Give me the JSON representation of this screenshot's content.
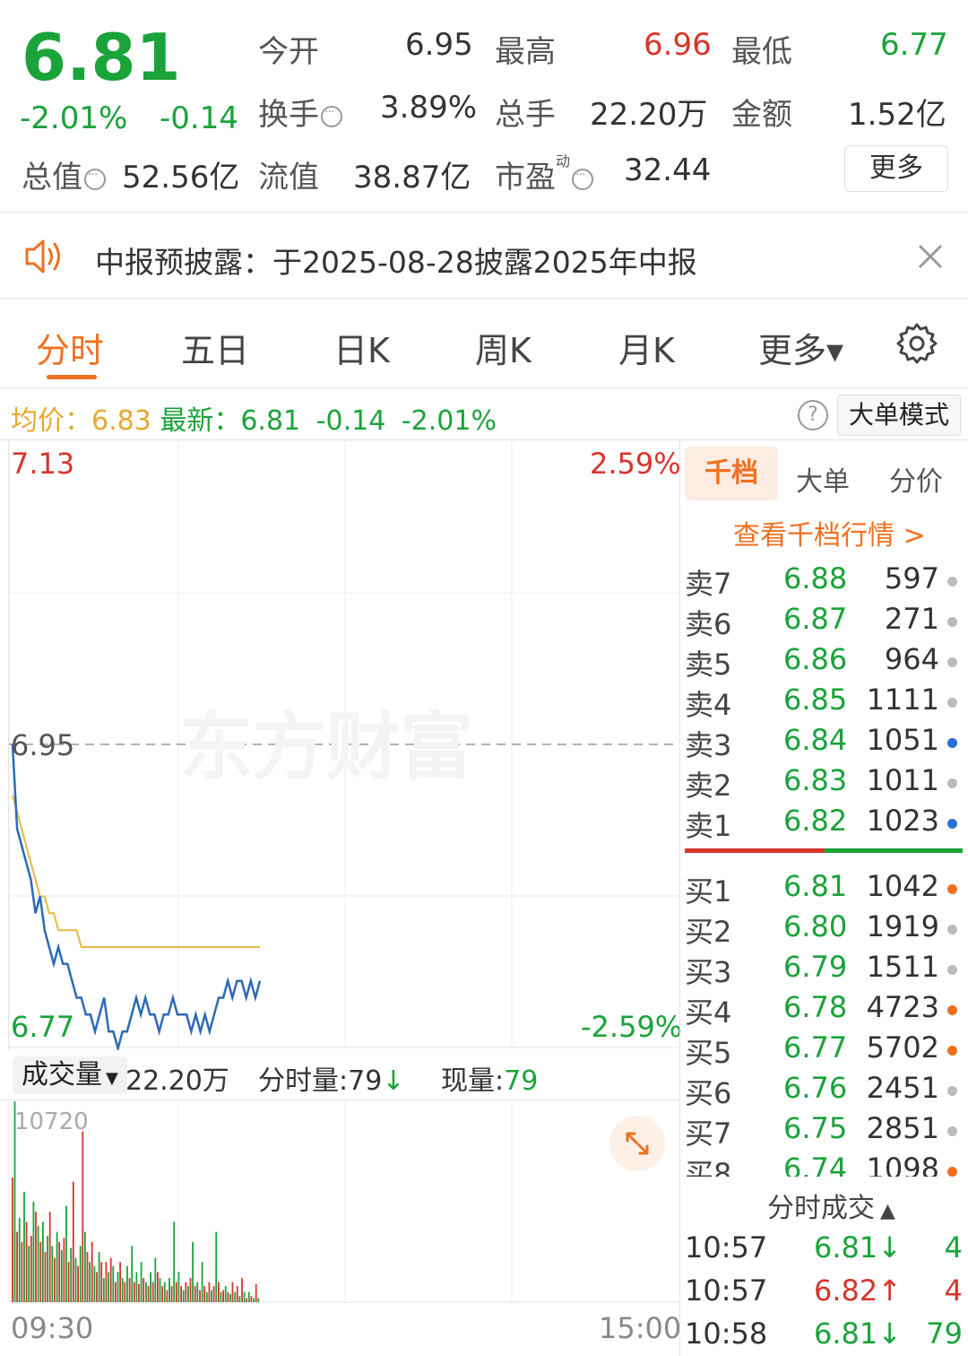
{
  "quote": {
    "price": "6.81",
    "change_pct": "-2.01%",
    "change": "-0.14",
    "open_label": "今开",
    "open": "6.95",
    "high_label": "最高",
    "high": "6.96",
    "low_label": "最低",
    "low": "6.77",
    "turnover_label": "换手",
    "turnover": "3.89%",
    "volume_label": "总手",
    "volume": "22.20万",
    "amount_label": "金额",
    "amount": "1.52亿",
    "mktcap_label": "总值",
    "mktcap": "52.56亿",
    "float_label": "流值",
    "float": "38.87亿",
    "pe_label": "市盈",
    "pe_sup": "动",
    "pe": "32.44",
    "more_button": "更多"
  },
  "notice": {
    "text": "中报预披露：于2025-08-28披露2025年中报"
  },
  "tabs": [
    {
      "label": "分时",
      "active": true
    },
    {
      "label": "五日"
    },
    {
      "label": "日K"
    },
    {
      "label": "周K"
    },
    {
      "label": "月K"
    },
    {
      "label": "更多▾"
    }
  ],
  "info_bar": {
    "avg_label": "均价：",
    "avg": "6.83",
    "latest_label": "最新：",
    "latest": "6.81",
    "change": "-0.14",
    "change_pct": "-2.01%",
    "mode_button": "大单模式"
  },
  "chart": {
    "y_top": "7.13",
    "y_bottom": "6.77",
    "y_mid": "6.95",
    "pct_top": "2.59%",
    "pct_bottom": "-2.59%",
    "x_start": "09:30",
    "x_end": "15:00",
    "watermark": "东方财富",
    "volume_selector": "成交量",
    "volume_total": "22.20万",
    "min_volume": "分时量:79",
    "now_volume_label": "现量:",
    "now_volume": "79",
    "vol_max_label": "10720"
  },
  "chart_data": {
    "type": "line",
    "ylim": [
      6.77,
      7.13
    ],
    "prev_close": 6.95,
    "series": [
      {
        "values": [
          6.95,
          6.9,
          6.89,
          6.88,
          6.87,
          6.85,
          6.86,
          6.84,
          6.83,
          6.82,
          6.83,
          6.82,
          6.82,
          6.81,
          6.8,
          6.8,
          6.79,
          6.79,
          6.78,
          6.79,
          6.8,
          6.78,
          6.78,
          6.77,
          6.78,
          6.78,
          6.79,
          6.8,
          6.79,
          6.8,
          6.79,
          6.79,
          6.78,
          6.79,
          6.79,
          6.8,
          6.79,
          6.79,
          6.79,
          6.78,
          6.79,
          6.78,
          6.79,
          6.78,
          6.79,
          6.8,
          6.8,
          6.81,
          6.8,
          6.81,
          6.81,
          6.8,
          6.81,
          6.8,
          6.81
        ]
      },
      {
        "values": [
          6.92,
          6.91,
          6.9,
          6.89,
          6.88,
          6.87,
          6.86,
          6.86,
          6.85,
          6.85,
          6.84,
          6.84,
          6.84,
          6.84,
          6.84,
          6.83,
          6.83,
          6.83,
          6.83,
          6.83,
          6.83,
          6.83,
          6.83,
          6.83,
          6.83,
          6.83,
          6.83,
          6.83,
          6.83,
          6.83,
          6.83,
          6.83,
          6.83,
          6.83,
          6.83,
          6.83,
          6.83,
          6.83,
          6.83,
          6.83,
          6.83,
          6.83,
          6.83,
          6.83,
          6.83,
          6.83,
          6.83,
          6.83,
          6.83,
          6.83,
          6.83,
          6.83,
          6.83,
          6.83,
          6.83
        ]
      }
    ],
    "volume": [
      0.62,
      1.0,
      0.35,
      0.42,
      0.3,
      0.55,
      0.4,
      0.28,
      0.33,
      0.5,
      0.45,
      0.38,
      0.3,
      0.4,
      0.25,
      0.33,
      0.45,
      0.28,
      0.22,
      0.35,
      0.3,
      0.26,
      0.32,
      0.48,
      0.2,
      0.27,
      0.6,
      0.22,
      0.18,
      0.28,
      0.85,
      0.35,
      0.25,
      0.2,
      0.3,
      0.18,
      0.15,
      0.25,
      0.2,
      0.12,
      0.2,
      0.15,
      0.22,
      0.18,
      0.1,
      0.15,
      0.2,
      0.12,
      0.1,
      0.18,
      0.12,
      0.28,
      0.1,
      0.15,
      0.09,
      0.2,
      0.12,
      0.1,
      0.08,
      0.15,
      0.1,
      0.22,
      0.15,
      0.12,
      0.08,
      0.1,
      0.06,
      0.12,
      0.08,
      0.4,
      0.1,
      0.15,
      0.08,
      0.06,
      0.1,
      0.08,
      0.12,
      0.3,
      0.08,
      0.1,
      0.06,
      0.2,
      0.08,
      0.05,
      0.1,
      0.06,
      0.08,
      0.35,
      0.1,
      0.05,
      0.06,
      0.08,
      0.05,
      0.04,
      0.1,
      0.05,
      0.08,
      0.03,
      0.12,
      0.05,
      0.02,
      0.05,
      0.03,
      0.02,
      0.09,
      0.02
    ],
    "volume_colors": "alternating red/green by tick direction"
  },
  "order_book": {
    "tabs": [
      "千档",
      "大单",
      "分价"
    ],
    "link": "查看千档行情 >",
    "asks": [
      {
        "label": "卖7",
        "price": "6.88",
        "qty": "597",
        "dot": "#bbbbbb"
      },
      {
        "label": "卖6",
        "price": "6.87",
        "qty": "271",
        "dot": "#bbbbbb"
      },
      {
        "label": "卖5",
        "price": "6.86",
        "qty": "964",
        "dot": "#bbbbbb"
      },
      {
        "label": "卖4",
        "price": "6.85",
        "qty": "1111",
        "dot": "#bbbbbb"
      },
      {
        "label": "卖3",
        "price": "6.84",
        "qty": "1051",
        "dot": "#2a6fd6"
      },
      {
        "label": "卖2",
        "price": "6.83",
        "qty": "1011",
        "dot": "#bbbbbb"
      },
      {
        "label": "卖1",
        "price": "6.82",
        "qty": "1023",
        "dot": "#2a6fd6"
      }
    ],
    "bids": [
      {
        "label": "买1",
        "price": "6.81",
        "qty": "1042",
        "dot": "#f07020"
      },
      {
        "label": "买2",
        "price": "6.80",
        "qty": "1919",
        "dot": "#bbbbbb"
      },
      {
        "label": "买3",
        "price": "6.79",
        "qty": "1511",
        "dot": "#bbbbbb"
      },
      {
        "label": "买4",
        "price": "6.78",
        "qty": "4723",
        "dot": "#f07020"
      },
      {
        "label": "买5",
        "price": "6.77",
        "qty": "5702",
        "dot": "#f07020"
      },
      {
        "label": "买6",
        "price": "6.76",
        "qty": "2451",
        "dot": "#bbbbbb"
      },
      {
        "label": "买7",
        "price": "6.75",
        "qty": "2851",
        "dot": "#bbbbbb"
      },
      {
        "label": "买8",
        "price": "6.74",
        "qty": "1098",
        "dot": "#f07020"
      }
    ]
  },
  "trades": {
    "title": "分时成交",
    "rows": [
      {
        "time": "10:57",
        "price": "6.81",
        "dir": "↓",
        "qty": "4",
        "color": "#1aa33a"
      },
      {
        "time": "10:57",
        "price": "6.82",
        "dir": "↑",
        "qty": "4",
        "color": "#d9342b"
      },
      {
        "time": "10:58",
        "price": "6.81",
        "dir": "↓",
        "qty": "79",
        "color": "#1aa33a"
      }
    ]
  },
  "colors": {
    "up": "#d9342b",
    "down": "#1aa33a",
    "accent": "#f07020",
    "price_line": "#2c6bb5",
    "avg_line": "#e8b845"
  }
}
